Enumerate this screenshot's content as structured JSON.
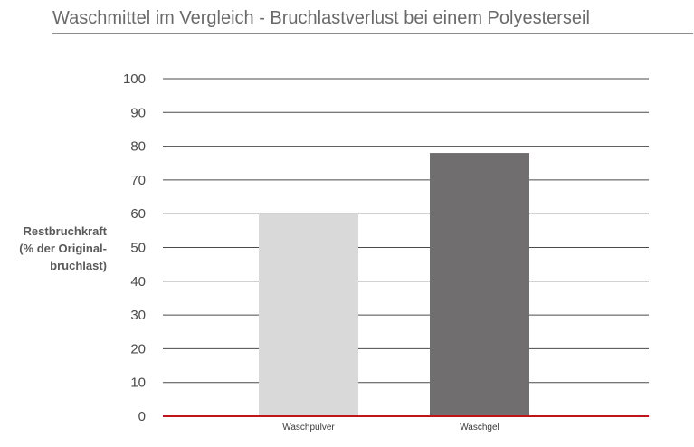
{
  "chart_data": {
    "type": "bar",
    "title": "Waschmittel im Vergleich - Bruchlastverlust bei einem Polyesterseil",
    "ylabel_lines": [
      "Restbruchkraft",
      "(% der Original-",
      "bruchlast)"
    ],
    "xlabel": "",
    "categories": [
      "Waschpulver",
      "Waschgel"
    ],
    "values": [
      60,
      78
    ],
    "bar_colors": [
      "#d9d9d9",
      "#706e6f"
    ],
    "ylim": [
      0,
      100
    ],
    "yticks": [
      0,
      10,
      20,
      30,
      40,
      50,
      60,
      70,
      80,
      90,
      100
    ],
    "grid": true,
    "grid_color": "#4a4a4a",
    "baseline_color": "#c0141b",
    "title_color": "#6a6a6a",
    "legend": "none"
  }
}
